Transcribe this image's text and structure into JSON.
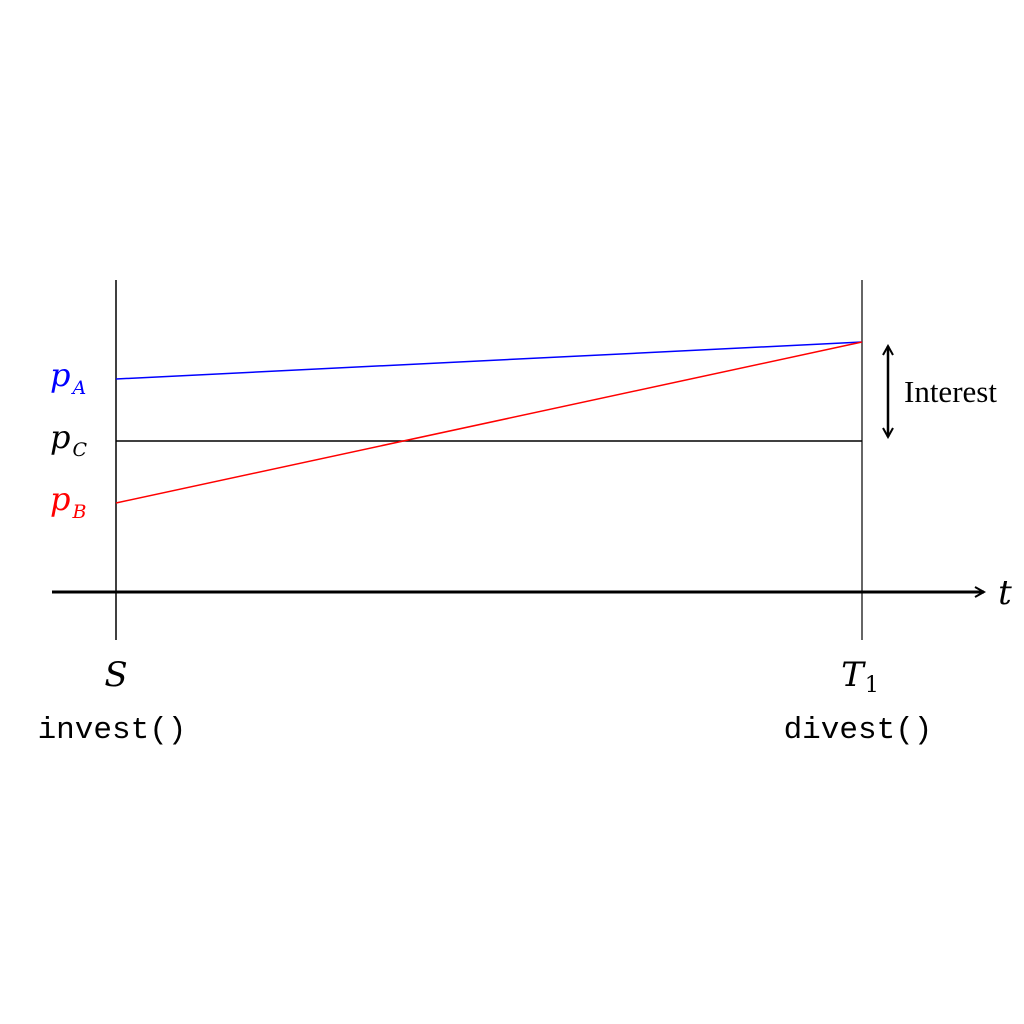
{
  "diagram": {
    "axis_label": "t",
    "start": {
      "label": "S",
      "call": "invest()"
    },
    "end": {
      "label_main": "T",
      "label_sub": "1",
      "call": "divest()"
    },
    "prices": {
      "a": {
        "main": "p",
        "sub": "A",
        "color": "#0000ff"
      },
      "c": {
        "main": "p",
        "sub": "C",
        "color": "#000000"
      },
      "b": {
        "main": "p",
        "sub": "B",
        "color": "#ff0000"
      }
    },
    "interest_label": "Interest"
  }
}
